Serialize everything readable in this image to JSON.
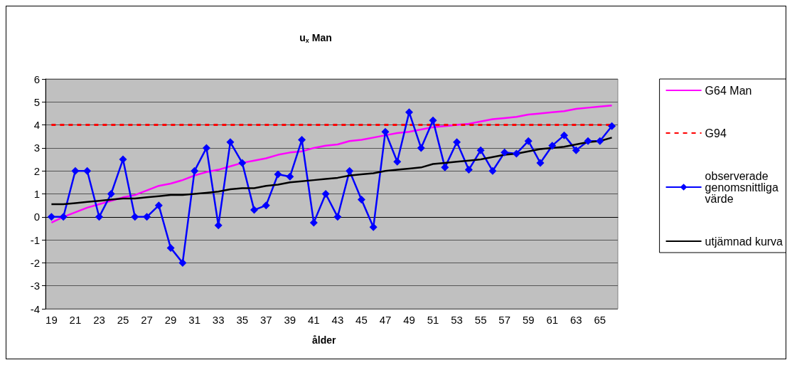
{
  "chart_data": {
    "type": "line",
    "title": "u$_{x}$ Man",
    "xlabel": "ålder",
    "categories": [
      "19",
      null,
      "21",
      null,
      "23",
      null,
      "25",
      null,
      "27",
      null,
      "29",
      null,
      "31",
      null,
      "33",
      null,
      "35",
      null,
      "37",
      null,
      "39",
      null,
      "41",
      null,
      "43",
      null,
      "45",
      null,
      "47",
      null,
      "49",
      null,
      "51",
      null,
      "53",
      null,
      "55",
      null,
      "57",
      null,
      "59",
      null,
      "61",
      null,
      "63",
      null,
      "65",
      null
    ],
    "series": [
      {
        "name": "G64 Man",
        "color": "#ff00ff",
        "marker": "none",
        "line_style": "solid",
        "values": [
          -0.25,
          0,
          0.2,
          0.4,
          0.55,
          0.7,
          0.85,
          0.95,
          1.15,
          1.35,
          1.45,
          1.6,
          1.8,
          1.95,
          2.05,
          2.2,
          2.35,
          2.45,
          2.55,
          2.7,
          2.8,
          2.85,
          3.0,
          3.1,
          3.15,
          3.3,
          3.35,
          3.45,
          3.55,
          3.65,
          3.7,
          3.8,
          3.9,
          3.95,
          4.0,
          4.05,
          4.15,
          4.25,
          4.3,
          4.35,
          4.45,
          4.5,
          4.55,
          4.6,
          4.7,
          4.75,
          4.8,
          4.85
        ]
      },
      {
        "name": "G94",
        "color": "#ff0000",
        "marker": "none",
        "line_style": "dashed",
        "values": [
          4,
          4,
          4,
          4,
          4,
          4,
          4,
          4,
          4,
          4,
          4,
          4,
          4,
          4,
          4,
          4,
          4,
          4,
          4,
          4,
          4,
          4,
          4,
          4,
          4,
          4,
          4,
          4,
          4,
          4,
          4,
          4,
          4,
          4,
          4,
          4,
          4,
          4,
          4,
          4,
          4,
          4,
          4,
          4,
          4,
          4,
          4,
          4
        ]
      },
      {
        "name": "observerade genomsnittliga värde",
        "color": "#0000ff",
        "marker": "diamond",
        "line_style": "solid",
        "values": [
          0,
          0,
          2,
          2,
          0,
          1,
          2.5,
          0,
          0,
          0.5,
          -1.35,
          -2,
          2,
          3,
          -0.37,
          3.25,
          2.35,
          0.3,
          0.5,
          1.85,
          1.75,
          3.35,
          -0.25,
          1,
          0,
          2,
          0.75,
          -0.45,
          3.7,
          2.4,
          4.55,
          3,
          4.2,
          2.15,
          3.25,
          2.05,
          2.9,
          2.0,
          2.8,
          2.75,
          3.3,
          2.35,
          3.1,
          3.55,
          2.9,
          3.3,
          3.3,
          3.95
        ]
      },
      {
        "name": "utjämnad kurva",
        "color": "#000000",
        "marker": "none",
        "line_style": "solid",
        "values": [
          0.55,
          0.55,
          0.6,
          0.65,
          0.7,
          0.75,
          0.8,
          0.8,
          0.85,
          0.9,
          0.95,
          0.95,
          1.0,
          1.05,
          1.1,
          1.2,
          1.25,
          1.25,
          1.35,
          1.4,
          1.5,
          1.55,
          1.6,
          1.65,
          1.7,
          1.8,
          1.85,
          1.9,
          2.0,
          2.05,
          2.1,
          2.15,
          2.3,
          2.35,
          2.4,
          2.45,
          2.5,
          2.6,
          2.7,
          2.75,
          2.85,
          2.95,
          3.0,
          3.05,
          3.15,
          3.25,
          3.3,
          3.45
        ]
      }
    ],
    "ylim": [
      -4,
      6
    ],
    "yticks": [
      -4,
      -3,
      -2,
      -1,
      0,
      1,
      2,
      3,
      4,
      5,
      6
    ],
    "grid": "y",
    "legend": "right"
  }
}
